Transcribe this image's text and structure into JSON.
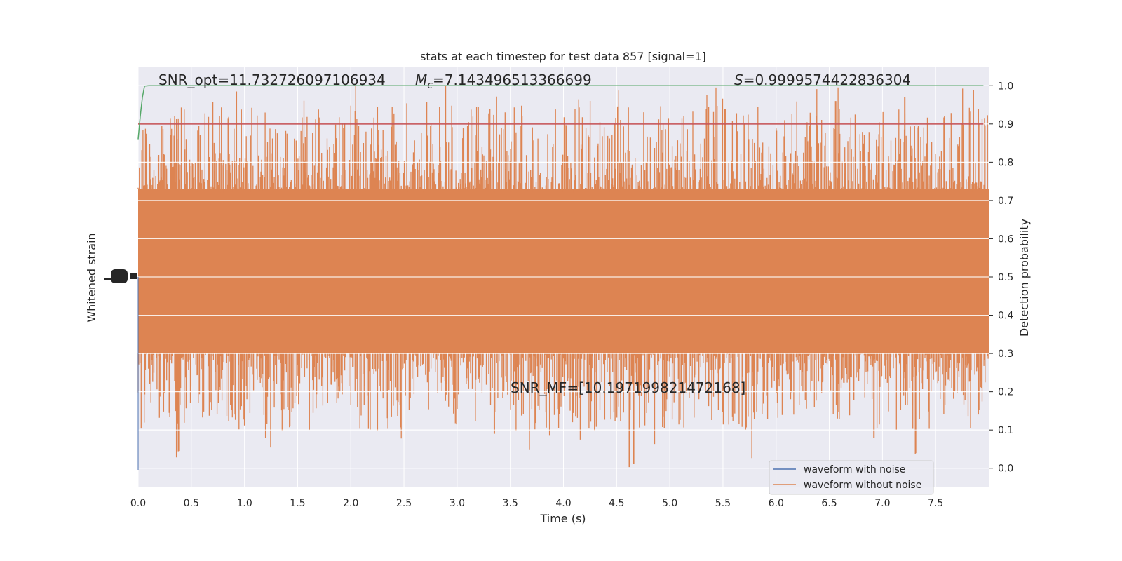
{
  "chart_data": {
    "type": "line",
    "title": "stats at each timestep for test data 857 [signal=1]",
    "xlabel": "Time (s)",
    "ylabel_left": "Whitened strain",
    "ylabel_right": "Detection probability",
    "xlim": [
      0.0,
      8.0
    ],
    "ylim_right": [
      -0.05,
      1.05
    ],
    "x_ticks": [
      "0.0",
      "0.5",
      "1.0",
      "1.5",
      "2.0",
      "2.5",
      "3.0",
      "3.5",
      "4.0",
      "4.5",
      "5.0",
      "5.5",
      "6.0",
      "6.5",
      "7.0",
      "7.5"
    ],
    "y_ticks_right": [
      "0.0",
      "0.1",
      "0.2",
      "0.3",
      "0.4",
      "0.5",
      "0.6",
      "0.7",
      "0.8",
      "0.9",
      "1.0"
    ],
    "grid": true,
    "annotations": {
      "snr_opt": "SNR_opt=11.732726097106934",
      "mc_symbol": "M",
      "mc_sub": "c",
      "mc_value": "=7.143496513366699",
      "s_symbol": "S",
      "s_value": "=0.9999574422836304",
      "snr_mf": "SNR_MF=[10.197199821472168]"
    },
    "series": [
      {
        "name": "waveform with noise",
        "color": "#4c72b0"
      },
      {
        "name": "waveform without noise",
        "color": "#dd8452"
      }
    ],
    "detection_probability": {
      "color": "#55a868",
      "x": [
        0.0,
        0.02,
        0.04,
        0.06,
        0.1,
        7.95
      ],
      "y": [
        0.86,
        0.92,
        0.97,
        0.999,
        1.0,
        1.0
      ]
    },
    "threshold": {
      "value": 0.9,
      "color": "#c44e52"
    },
    "noise_band": {
      "color": "#dd8452",
      "core_low": 0.3,
      "core_high": 0.73,
      "peak_max": 1.0,
      "trough_min": 0.0
    }
  },
  "legend": {
    "placement": "lower-right"
  }
}
